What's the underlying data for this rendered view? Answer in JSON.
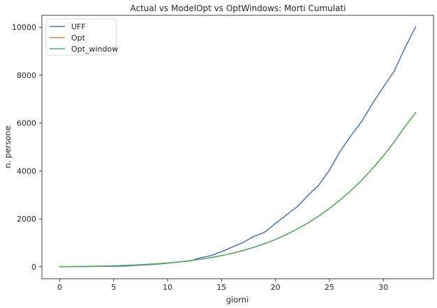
{
  "chart_data": {
    "type": "line",
    "title": "Actual vs ModelOpt vs OptWindows: Morti Cumulati",
    "xlabel": "giorni",
    "ylabel": "n. persone",
    "xlim": [
      -1.65,
      34.65
    ],
    "ylim": [
      -500,
      10500
    ],
    "xticks": [
      0,
      5,
      10,
      15,
      20,
      25,
      30
    ],
    "yticks": [
      0,
      2000,
      4000,
      6000,
      8000,
      10000
    ],
    "grid": false,
    "legend_position": "top-left",
    "x": [
      0,
      1,
      2,
      3,
      4,
      5,
      6,
      7,
      8,
      9,
      10,
      11,
      12,
      13,
      14,
      15,
      16,
      17,
      18,
      19,
      20,
      21,
      22,
      23,
      24,
      25,
      26,
      27,
      28,
      29,
      30,
      31,
      32,
      33
    ],
    "series": [
      {
        "name": "UFF",
        "color": "#4c72b0",
        "values": [
          0,
          2,
          5,
          12,
          17,
          21,
          29,
          52,
          79,
          107,
          148,
          197,
          233,
          366,
          463,
          631,
          827,
          1016,
          1266,
          1441,
          1809,
          2158,
          2503,
          2978,
          3405,
          4032,
          4825,
          5476,
          6077,
          6820,
          7503,
          8165,
          9134,
          10023
        ]
      },
      {
        "name": "Opt",
        "color": "#dd8452",
        "values": [
          2,
          7,
          13,
          20,
          29,
          40,
          55,
          74,
          97,
          126,
          160,
          201,
          249,
          308,
          380,
          464,
          563,
          678,
          812,
          966,
          1142,
          1343,
          1570,
          1826,
          2113,
          2433,
          2789,
          3184,
          3620,
          4101,
          4630,
          5210,
          5845,
          6440
        ]
      },
      {
        "name": "Opt_window",
        "color": "#55a868",
        "values": [
          2,
          7,
          13,
          20,
          29,
          40,
          55,
          74,
          97,
          126,
          160,
          201,
          249,
          308,
          380,
          464,
          563,
          678,
          812,
          966,
          1142,
          1343,
          1570,
          1826,
          2113,
          2433,
          2789,
          3184,
          3620,
          4101,
          4630,
          5210,
          5845,
          6440
        ]
      }
    ]
  }
}
